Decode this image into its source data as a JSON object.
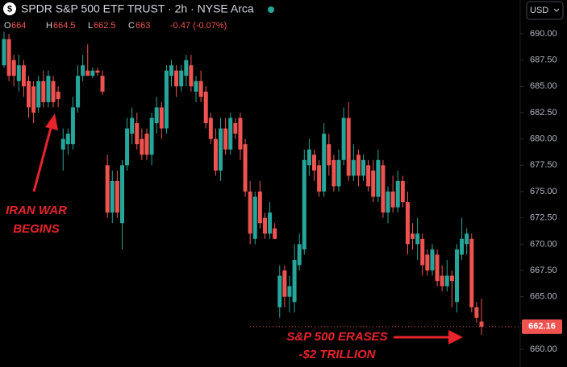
{
  "chart_data": {
    "type": "candlestick",
    "title": "SPDR S&P 500 ETF TRUST · 2h · NYSE Arca",
    "currency": "USD",
    "ohlc_keys": [
      "O",
      "H",
      "L",
      "C"
    ],
    "change": "-0.47 (-0.07%)",
    "up_color": "#26a69a",
    "down_color": "#ef5350",
    "ylim": [
      658.32,
      693.21
    ],
    "yticks": [
      {
        "value": 660,
        "label": "660.00"
      },
      {
        "value": 662.5,
        "label": "662.50"
      },
      {
        "value": 665,
        "label": "665.00"
      },
      {
        "value": 667.5,
        "label": "667.50"
      },
      {
        "value": 670,
        "label": "670.00"
      },
      {
        "value": 672.5,
        "label": "672.50"
      },
      {
        "value": 675,
        "label": "675.00"
      },
      {
        "value": 677.5,
        "label": "677.50"
      },
      {
        "value": 680,
        "label": "680.00"
      },
      {
        "value": 682.5,
        "label": "682.50"
      },
      {
        "value": 685,
        "label": "685.00"
      },
      {
        "value": 687.5,
        "label": "687.50"
      },
      {
        "value": 690,
        "label": "690.00"
      }
    ],
    "annotations": [
      {
        "lines": [
          "IRAN WAR",
          "BEGINS"
        ]
      },
      {
        "lines": [
          "S&P 500 ERASES",
          "-$2 TRILLION"
        ]
      }
    ],
    "candles": [
      [
        687,
        690.2,
        686.8,
        689.5
      ],
      [
        689.5,
        690,
        685.5,
        686
      ],
      [
        687.5,
        688,
        685,
        686
      ],
      [
        685.5,
        688,
        684.5,
        687
      ],
      [
        687,
        687.5,
        684,
        685
      ],
      [
        685.5,
        686,
        682,
        683
      ],
      [
        685,
        685.5,
        681.5,
        682.5
      ],
      [
        683,
        686,
        682.5,
        685.5
      ],
      [
        685.5,
        686.5,
        683,
        683.5
      ],
      [
        683.5,
        686.5,
        683,
        686
      ],
      [
        685.5,
        686,
        683,
        683.5
      ],
      [
        684.5,
        685,
        683,
        683.8
      ],
      [
        679,
        681,
        677,
        680
      ],
      [
        679.5,
        681,
        678.5,
        680.5
      ],
      [
        679.5,
        684,
        679,
        683
      ],
      [
        683,
        687,
        682.5,
        686
      ],
      [
        686,
        688,
        685.5,
        687
      ],
      [
        686.5,
        689,
        686,
        686
      ],
      [
        686,
        686.8,
        685.8,
        686.5
      ],
      [
        686.5,
        686.8,
        686,
        686.3
      ],
      [
        686,
        686.5,
        684.2,
        684.5
      ],
      [
        677.5,
        678.5,
        672.5,
        673
      ],
      [
        673,
        677,
        672,
        676
      ],
      [
        676,
        677,
        672.5,
        673
      ],
      [
        672,
        678,
        669.5,
        677.5
      ],
      [
        677.5,
        682,
        677,
        681
      ],
      [
        680.5,
        683,
        679.5,
        682
      ],
      [
        681.5,
        682.5,
        679,
        679.5
      ],
      [
        680,
        681,
        678,
        678.5
      ],
      [
        680.5,
        681,
        678,
        678.5
      ],
      [
        678.5,
        682.5,
        677.5,
        682
      ],
      [
        681.5,
        684,
        680.5,
        683
      ],
      [
        683,
        683.5,
        680,
        681
      ],
      [
        681,
        687,
        680.5,
        686.5
      ],
      [
        686,
        687.5,
        685,
        687
      ],
      [
        686.5,
        687,
        684,
        685
      ],
      [
        685,
        687,
        684.5,
        686.5
      ],
      [
        686,
        688,
        685,
        687.5
      ],
      [
        687,
        688,
        684.5,
        685
      ],
      [
        684.5,
        686,
        683.5,
        685.5
      ],
      [
        685.5,
        686.5,
        683.5,
        684
      ],
      [
        684.5,
        685,
        681,
        681.5
      ],
      [
        682,
        682.5,
        679.5,
        680
      ],
      [
        680,
        681,
        676.5,
        677
      ],
      [
        677,
        682,
        676,
        681
      ],
      [
        681,
        682,
        678.5,
        679
      ],
      [
        679,
        682.5,
        678.5,
        682
      ],
      [
        681.5,
        682,
        680,
        680.5
      ],
      [
        682,
        682.5,
        678,
        679
      ],
      [
        679.5,
        680,
        674.5,
        675
      ],
      [
        675,
        676,
        670,
        671
      ],
      [
        670.5,
        675,
        670,
        674.5
      ],
      [
        675,
        676,
        671.5,
        672
      ],
      [
        672.5,
        673,
        670.5,
        671
      ],
      [
        671,
        674,
        670.5,
        673
      ],
      [
        671.5,
        672,
        670.5,
        670.5
      ],
      [
        664,
        668,
        663,
        667
      ],
      [
        667.5,
        668,
        664,
        665
      ],
      [
        665,
        667,
        663.5,
        666
      ],
      [
        664.5,
        670,
        663.5,
        668.5
      ],
      [
        668,
        671,
        667.5,
        670
      ],
      [
        669.5,
        679,
        669,
        678
      ],
      [
        677.5,
        680,
        676.5,
        679
      ],
      [
        678.5,
        679,
        676,
        677
      ],
      [
        677.5,
        678,
        674.5,
        675
      ],
      [
        675,
        681.5,
        674.5,
        680.5
      ],
      [
        679.5,
        680.5,
        676.5,
        677.5
      ],
      [
        678,
        678.5,
        675,
        675.5
      ],
      [
        675.5,
        679,
        675,
        678
      ],
      [
        678,
        683,
        677.5,
        682
      ],
      [
        682,
        683.5,
        676,
        676.5
      ],
      [
        676.5,
        679.5,
        676,
        678
      ],
      [
        678.5,
        679,
        675.5,
        676.5
      ],
      [
        676.5,
        678.5,
        676,
        678
      ],
      [
        677.5,
        678,
        675,
        675.5
      ],
      [
        677,
        678,
        674,
        674.5
      ],
      [
        674.5,
        679,
        674,
        678
      ],
      [
        677.5,
        678,
        672.5,
        673
      ],
      [
        673,
        675.5,
        672,
        675
      ],
      [
        675,
        676.5,
        673,
        673.5
      ],
      [
        673.5,
        677,
        673,
        676
      ],
      [
        676,
        676.5,
        673.5,
        674
      ],
      [
        674,
        675,
        669,
        670
      ],
      [
        671,
        672,
        669.5,
        670.5
      ],
      [
        670,
        672.5,
        668.5,
        671
      ],
      [
        670.5,
        671,
        667,
        668
      ],
      [
        669,
        669.5,
        667,
        667.5
      ],
      [
        667.5,
        670,
        667,
        669.5
      ],
      [
        669,
        669.5,
        666,
        666.5
      ],
      [
        667,
        668,
        665.5,
        666
      ],
      [
        666,
        668.5,
        665.5,
        667
      ],
      [
        667,
        667.5,
        664,
        666.5
      ],
      [
        664.5,
        670,
        663.5,
        669.5
      ],
      [
        669,
        672.5,
        668.5,
        670.5
      ],
      [
        670,
        671.5,
        669,
        671
      ],
      [
        670.5,
        671,
        663.5,
        664
      ],
      [
        664,
        664.5,
        662.5,
        663
      ],
      [
        662.64,
        664.81,
        661.36,
        662.16
      ]
    ]
  }
}
